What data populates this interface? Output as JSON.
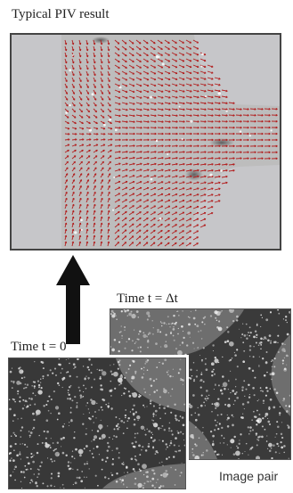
{
  "title": "Typical PIV result",
  "time_label_1": "Time t = Δt",
  "time_label_0": "Time t = 0",
  "pair_label": "Image pair",
  "colors": {
    "vector": "#b21e1e",
    "frame": "#444444",
    "piv_background": "#c6c6c9",
    "flow_image": "#bcbcbc",
    "particle_image": "#3c3c3c",
    "arrow": "#111111"
  },
  "icons": {
    "arrow": "up-arrow-icon"
  }
}
